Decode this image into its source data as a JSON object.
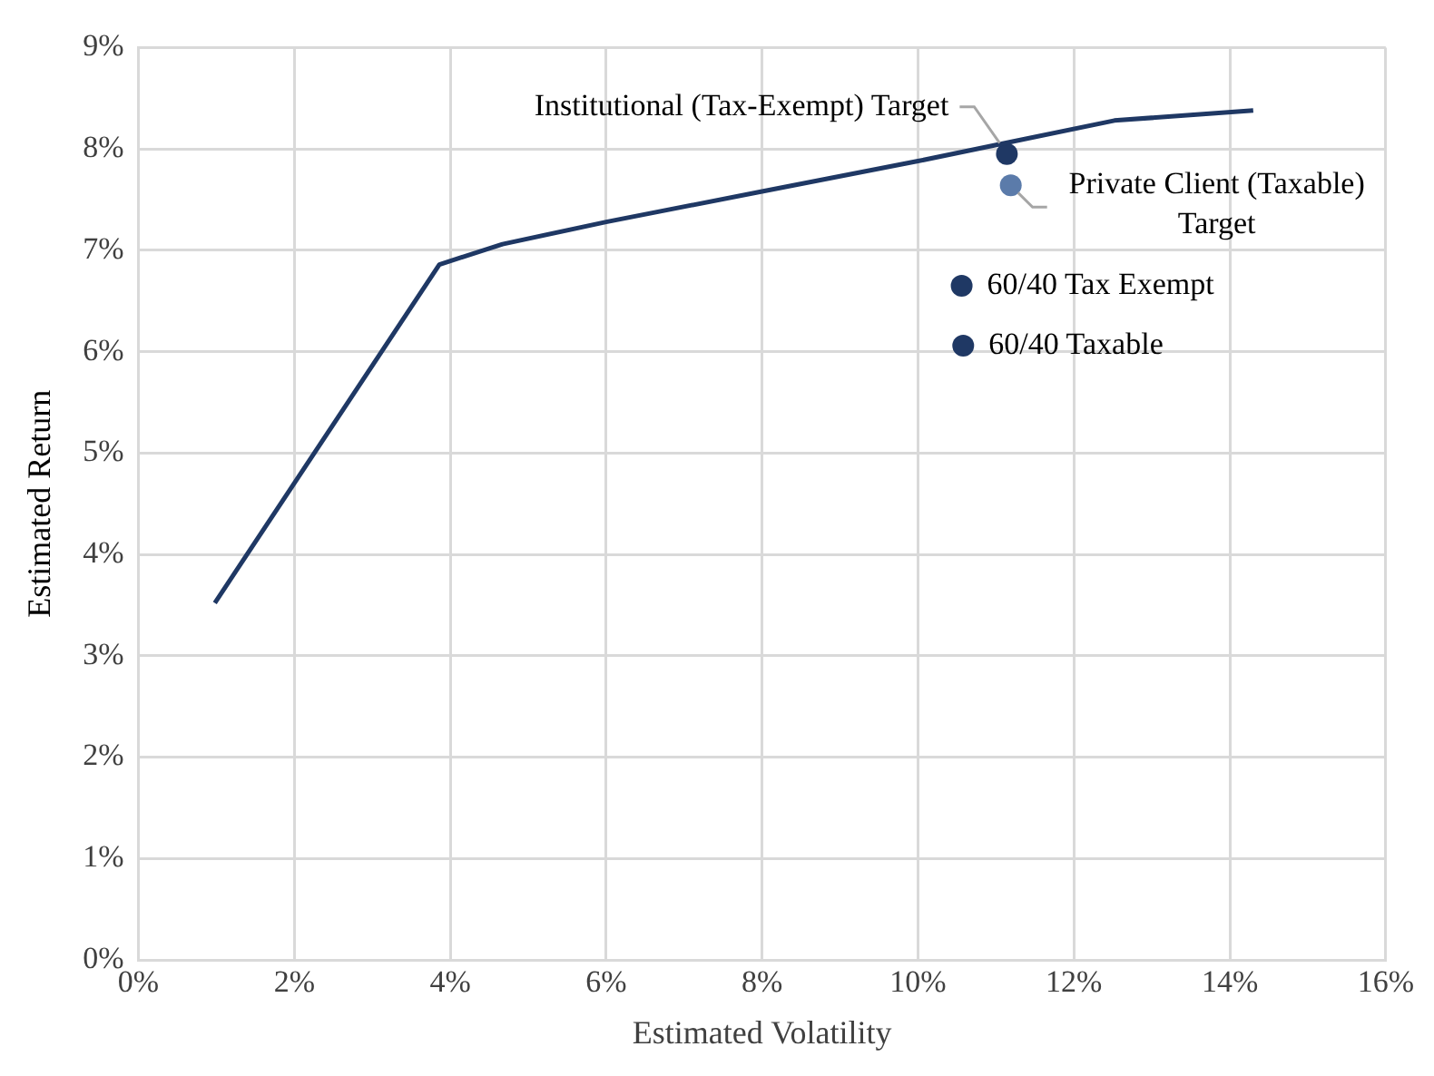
{
  "chart_data": {
    "type": "line",
    "xlabel": "Estimated Volatility",
    "ylabel": "Estimated Return",
    "xlim": [
      0,
      16
    ],
    "xticks": [
      {
        "value": 0,
        "label": "0%"
      },
      {
        "value": 2,
        "label": "2%"
      },
      {
        "value": 4,
        "label": "4%"
      },
      {
        "value": 6,
        "label": "6%"
      },
      {
        "value": 8,
        "label": "8%"
      },
      {
        "value": 10,
        "label": "10%"
      },
      {
        "value": 12,
        "label": "12%"
      },
      {
        "value": 14,
        "label": "14%"
      },
      {
        "value": 16,
        "label": "16%"
      }
    ],
    "ylim": [
      0,
      9
    ],
    "yticks": [
      {
        "value": 0,
        "label": "0%"
      },
      {
        "value": 1,
        "label": "1%"
      },
      {
        "value": 2,
        "label": "2%"
      },
      {
        "value": 3,
        "label": "3%"
      },
      {
        "value": 4,
        "label": "4%"
      },
      {
        "value": 5,
        "label": "5%"
      },
      {
        "value": 6,
        "label": "6%"
      },
      {
        "value": 7,
        "label": "7%"
      },
      {
        "value": 8,
        "label": "8%"
      },
      {
        "value": 9,
        "label": "9%"
      }
    ],
    "grid": true,
    "legend": false,
    "series": [
      {
        "type": "line",
        "color": "#1f3864",
        "x": [
          0.98,
          3.86,
          4.67,
          6.0,
          8.0,
          10.0,
          11.2,
          12.52,
          14.3
        ],
        "values": [
          3.52,
          6.86,
          7.06,
          7.28,
          7.58,
          7.88,
          8.07,
          8.28,
          8.38
        ],
        "marker": "none"
      },
      {
        "type": "scatter",
        "color": "#1f3864",
        "x": [
          11.14
        ],
        "values": [
          7.95
        ],
        "marker": "circle"
      },
      {
        "type": "scatter",
        "color": "#5b7baa",
        "x": [
          11.19
        ],
        "values": [
          7.64
        ],
        "marker": "circle"
      },
      {
        "type": "scatter",
        "name": "60/40 Tax Exempt",
        "color": "#1f3864",
        "x": [
          10.56
        ],
        "values": [
          6.65
        ],
        "marker": "circle"
      },
      {
        "type": "scatter",
        "name": "60/40 Taxable",
        "color": "#1f3864",
        "x": [
          10.58
        ],
        "values": [
          6.06
        ],
        "marker": "circle"
      }
    ],
    "annotations": [
      {
        "text": "Institutional (Tax-Exempt) Target",
        "x": 11.14,
        "y": 7.95
      },
      {
        "text": "Private Client (Taxable) Target",
        "x": 11.19,
        "y": 7.64
      }
    ]
  }
}
